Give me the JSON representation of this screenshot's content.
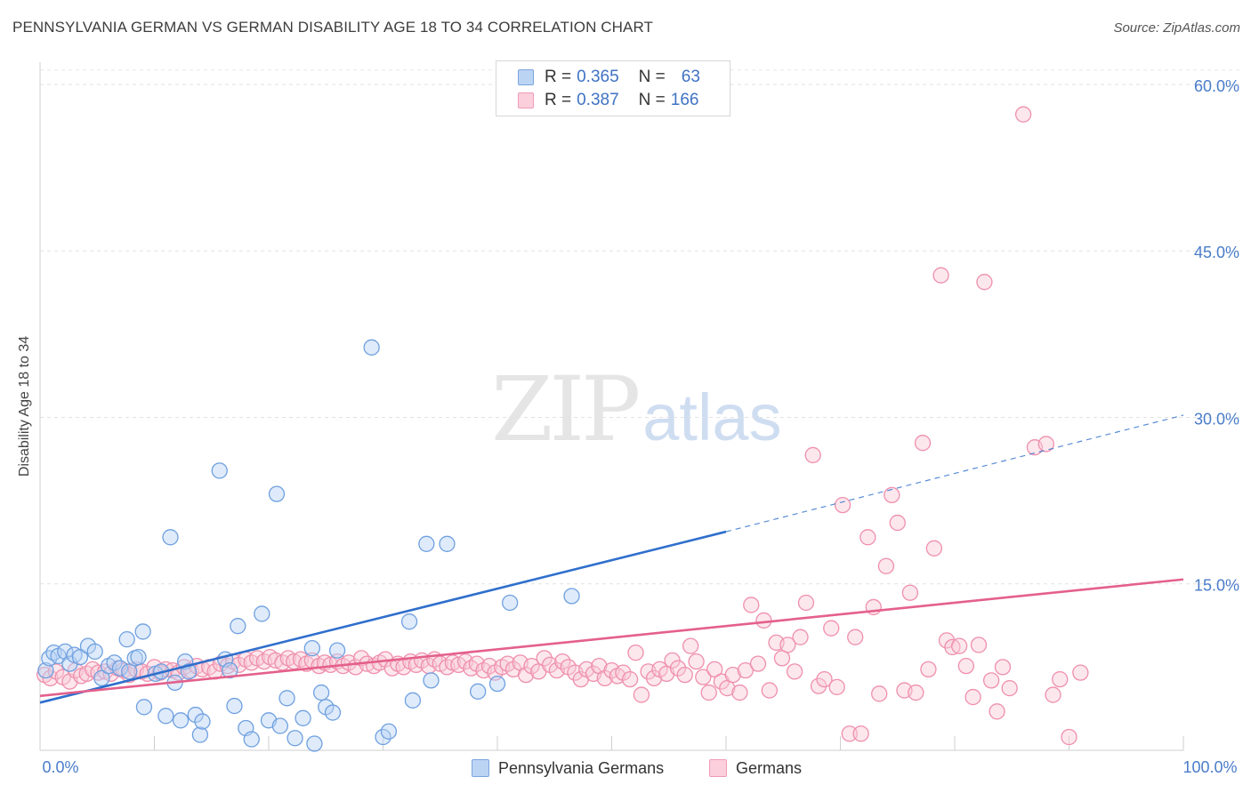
{
  "title": "PENNSYLVANIA GERMAN VS GERMAN DISABILITY AGE 18 TO 34 CORRELATION CHART",
  "source": "Source: ZipAtlas.com",
  "watermark": {
    "zip": "ZIP",
    "atlas": "atlas"
  },
  "legend": {
    "rows": [
      {
        "r_label": "R = ",
        "r_value": "0.365",
        "n_label": "N = ",
        "n_value": "63",
        "color": "#a9c8f0"
      },
      {
        "r_label": "R = ",
        "r_value": "0.387",
        "n_label": "N = ",
        "n_value": "166",
        "color": "#f6b6c9"
      }
    ]
  },
  "bottom_legend": [
    {
      "label": "Pennsylvania Germans",
      "color": "#a9c8f0"
    },
    {
      "label": "Germans",
      "color": "#f6b6c9"
    }
  ],
  "chart_data": {
    "type": "scatter",
    "xlabel": "",
    "ylabel": "Disability Age 18 to 34",
    "xlim": [
      0,
      100
    ],
    "ylim": [
      0,
      62
    ],
    "x_tick_labels": [
      "0.0%",
      "100.0%"
    ],
    "y_ticks": [
      15,
      30,
      45,
      60
    ],
    "y_tick_labels": [
      "15.0%",
      "30.0%",
      "45.0%",
      "60.0%"
    ],
    "grid": true,
    "legend_position": "top-center",
    "series": [
      {
        "name": "Pennsylvania Germans",
        "color": "#6fa0e0",
        "fill": "#b9d3f3",
        "trend_color": "#2f6fcc",
        "trend": {
          "x0": 0,
          "y0": 4.3,
          "x1": 60,
          "y1": 19.7,
          "dash_to_x": 100,
          "dash_to_y": 30.2
        },
        "points": [
          [
            0.5,
            7.2
          ],
          [
            0.8,
            8.3
          ],
          [
            1.2,
            8.8
          ],
          [
            1.6,
            8.5
          ],
          [
            2.2,
            8.9
          ],
          [
            2.6,
            7.8
          ],
          [
            3.0,
            8.6
          ],
          [
            3.5,
            8.4
          ],
          [
            4.2,
            9.4
          ],
          [
            4.8,
            8.9
          ],
          [
            5.4,
            6.5
          ],
          [
            6.0,
            7.6
          ],
          [
            6.5,
            7.9
          ],
          [
            7.0,
            7.4
          ],
          [
            7.6,
            10.0
          ],
          [
            7.8,
            7.1
          ],
          [
            8.3,
            8.3
          ],
          [
            8.6,
            8.4
          ],
          [
            9.0,
            10.7
          ],
          [
            9.1,
            3.9
          ],
          [
            10.1,
            6.9
          ],
          [
            10.6,
            7.1
          ],
          [
            11.0,
            3.1
          ],
          [
            11.4,
            19.2
          ],
          [
            11.8,
            6.1
          ],
          [
            12.3,
            2.7
          ],
          [
            12.7,
            8.0
          ],
          [
            13.0,
            7.1
          ],
          [
            13.6,
            3.2
          ],
          [
            14.0,
            1.4
          ],
          [
            14.2,
            2.6
          ],
          [
            15.7,
            25.2
          ],
          [
            16.2,
            8.2
          ],
          [
            16.6,
            7.2
          ],
          [
            17.0,
            4.0
          ],
          [
            17.3,
            11.2
          ],
          [
            18.0,
            2.0
          ],
          [
            18.5,
            1.0
          ],
          [
            19.4,
            12.3
          ],
          [
            20.0,
            2.7
          ],
          [
            20.7,
            23.1
          ],
          [
            21.0,
            2.2
          ],
          [
            21.6,
            4.7
          ],
          [
            22.3,
            1.1
          ],
          [
            23.0,
            2.9
          ],
          [
            23.8,
            9.2
          ],
          [
            24.0,
            0.6
          ],
          [
            24.6,
            5.2
          ],
          [
            25.0,
            3.9
          ],
          [
            25.6,
            3.4
          ],
          [
            26.0,
            9.0
          ],
          [
            29.0,
            36.3
          ],
          [
            30.0,
            1.2
          ],
          [
            30.5,
            1.7
          ],
          [
            32.3,
            11.6
          ],
          [
            32.6,
            4.5
          ],
          [
            33.8,
            18.6
          ],
          [
            34.2,
            6.3
          ],
          [
            35.6,
            18.6
          ],
          [
            38.3,
            5.3
          ],
          [
            40.0,
            6.0
          ],
          [
            41.1,
            13.3
          ],
          [
            46.5,
            13.9
          ]
        ]
      },
      {
        "name": "Germans",
        "color": "#ef8fad",
        "fill": "#f9c9d7",
        "trend_color": "#e4608c",
        "trend": {
          "x0": 0,
          "y0": 4.9,
          "x1": 100,
          "y1": 15.4
        },
        "points": [
          [
            0.4,
            6.8
          ],
          [
            0.9,
            6.5
          ],
          [
            1.4,
            7.1
          ],
          [
            2.0,
            6.6
          ],
          [
            2.6,
            6.2
          ],
          [
            3.1,
            7.2
          ],
          [
            3.6,
            6.7
          ],
          [
            4.1,
            6.9
          ],
          [
            4.6,
            7.3
          ],
          [
            5.1,
            7.0
          ],
          [
            5.7,
            7.1
          ],
          [
            6.2,
            6.9
          ],
          [
            6.8,
            7.4
          ],
          [
            7.3,
            7.2
          ],
          [
            7.8,
            6.8
          ],
          [
            8.4,
            7.3
          ],
          [
            8.9,
            7.1
          ],
          [
            9.4,
            6.9
          ],
          [
            10.0,
            7.5
          ],
          [
            10.5,
            7.0
          ],
          [
            11.0,
            7.3
          ],
          [
            11.6,
            7.2
          ],
          [
            12.1,
            7.0
          ],
          [
            12.6,
            7.5
          ],
          [
            13.2,
            7.2
          ],
          [
            13.7,
            7.6
          ],
          [
            14.2,
            7.3
          ],
          [
            14.8,
            7.5
          ],
          [
            15.3,
            7.1
          ],
          [
            15.8,
            7.8
          ],
          [
            16.4,
            7.6
          ],
          [
            16.9,
            8.0
          ],
          [
            17.4,
            7.7
          ],
          [
            18.0,
            8.2
          ],
          [
            18.5,
            7.9
          ],
          [
            19.0,
            8.3
          ],
          [
            19.6,
            8.0
          ],
          [
            20.1,
            8.4
          ],
          [
            20.6,
            8.1
          ],
          [
            21.2,
            7.9
          ],
          [
            21.7,
            8.3
          ],
          [
            22.2,
            8.0
          ],
          [
            22.8,
            8.2
          ],
          [
            23.3,
            7.8
          ],
          [
            23.8,
            8.1
          ],
          [
            24.4,
            7.6
          ],
          [
            24.9,
            7.9
          ],
          [
            25.4,
            7.7
          ],
          [
            26.0,
            8.0
          ],
          [
            26.5,
            7.6
          ],
          [
            27.0,
            7.9
          ],
          [
            27.6,
            7.5
          ],
          [
            28.1,
            8.3
          ],
          [
            28.6,
            7.8
          ],
          [
            29.2,
            7.6
          ],
          [
            29.7,
            7.9
          ],
          [
            30.2,
            8.2
          ],
          [
            30.8,
            7.4
          ],
          [
            31.3,
            7.8
          ],
          [
            31.8,
            7.5
          ],
          [
            32.4,
            8.0
          ],
          [
            32.9,
            7.7
          ],
          [
            33.4,
            8.1
          ],
          [
            34.0,
            7.6
          ],
          [
            34.5,
            8.2
          ],
          [
            35.0,
            7.8
          ],
          [
            35.6,
            7.5
          ],
          [
            36.1,
            7.9
          ],
          [
            36.6,
            7.7
          ],
          [
            37.2,
            8.0
          ],
          [
            37.7,
            7.4
          ],
          [
            38.2,
            7.8
          ],
          [
            38.8,
            7.2
          ],
          [
            39.3,
            7.6
          ],
          [
            39.8,
            7.0
          ],
          [
            40.4,
            7.5
          ],
          [
            40.9,
            7.8
          ],
          [
            41.4,
            7.3
          ],
          [
            42.0,
            7.9
          ],
          [
            42.5,
            6.8
          ],
          [
            43.0,
            7.6
          ],
          [
            43.6,
            7.1
          ],
          [
            44.1,
            8.3
          ],
          [
            44.6,
            7.7
          ],
          [
            45.2,
            7.2
          ],
          [
            45.7,
            8.0
          ],
          [
            46.2,
            7.5
          ],
          [
            46.8,
            7.0
          ],
          [
            47.3,
            6.4
          ],
          [
            47.8,
            7.3
          ],
          [
            48.4,
            6.9
          ],
          [
            48.9,
            7.6
          ],
          [
            49.4,
            6.5
          ],
          [
            50.0,
            7.2
          ],
          [
            50.5,
            6.7
          ],
          [
            51.0,
            7.0
          ],
          [
            51.6,
            6.4
          ],
          [
            52.1,
            8.8
          ],
          [
            52.6,
            5.0
          ],
          [
            53.2,
            7.1
          ],
          [
            53.7,
            6.5
          ],
          [
            54.2,
            7.3
          ],
          [
            54.8,
            6.9
          ],
          [
            55.3,
            8.1
          ],
          [
            55.8,
            7.4
          ],
          [
            56.4,
            6.8
          ],
          [
            56.9,
            9.4
          ],
          [
            57.4,
            8.0
          ],
          [
            58.0,
            6.6
          ],
          [
            58.5,
            5.2
          ],
          [
            59.0,
            7.3
          ],
          [
            59.6,
            6.2
          ],
          [
            60.1,
            5.6
          ],
          [
            60.6,
            6.8
          ],
          [
            61.2,
            5.2
          ],
          [
            61.7,
            7.2
          ],
          [
            62.2,
            13.1
          ],
          [
            62.8,
            7.8
          ],
          [
            63.3,
            11.7
          ],
          [
            63.8,
            5.4
          ],
          [
            64.4,
            9.7
          ],
          [
            64.9,
            8.3
          ],
          [
            65.4,
            9.5
          ],
          [
            66.0,
            7.1
          ],
          [
            66.5,
            10.2
          ],
          [
            67.0,
            13.3
          ],
          [
            67.6,
            26.6
          ],
          [
            68.1,
            5.8
          ],
          [
            68.6,
            6.4
          ],
          [
            69.2,
            11.0
          ],
          [
            69.7,
            5.7
          ],
          [
            70.2,
            22.1
          ],
          [
            70.8,
            1.5
          ],
          [
            71.3,
            10.2
          ],
          [
            71.8,
            1.5
          ],
          [
            72.4,
            19.2
          ],
          [
            72.9,
            12.9
          ],
          [
            73.4,
            5.1
          ],
          [
            74.0,
            16.6
          ],
          [
            74.5,
            23.0
          ],
          [
            75.0,
            20.5
          ],
          [
            75.6,
            5.4
          ],
          [
            76.1,
            14.2
          ],
          [
            76.6,
            5.2
          ],
          [
            77.2,
            27.7
          ],
          [
            77.7,
            7.3
          ],
          [
            78.2,
            18.2
          ],
          [
            78.8,
            42.8
          ],
          [
            79.3,
            9.9
          ],
          [
            79.8,
            9.3
          ],
          [
            80.4,
            9.4
          ],
          [
            81.0,
            7.6
          ],
          [
            81.6,
            4.8
          ],
          [
            82.1,
            9.5
          ],
          [
            82.6,
            42.2
          ],
          [
            83.2,
            6.3
          ],
          [
            83.7,
            3.5
          ],
          [
            84.2,
            7.5
          ],
          [
            84.8,
            5.6
          ],
          [
            86.0,
            57.3
          ],
          [
            87.0,
            27.3
          ],
          [
            88.0,
            27.6
          ],
          [
            88.6,
            5.0
          ],
          [
            89.2,
            6.4
          ],
          [
            90.0,
            1.2
          ],
          [
            91.0,
            7.0
          ]
        ]
      }
    ]
  }
}
